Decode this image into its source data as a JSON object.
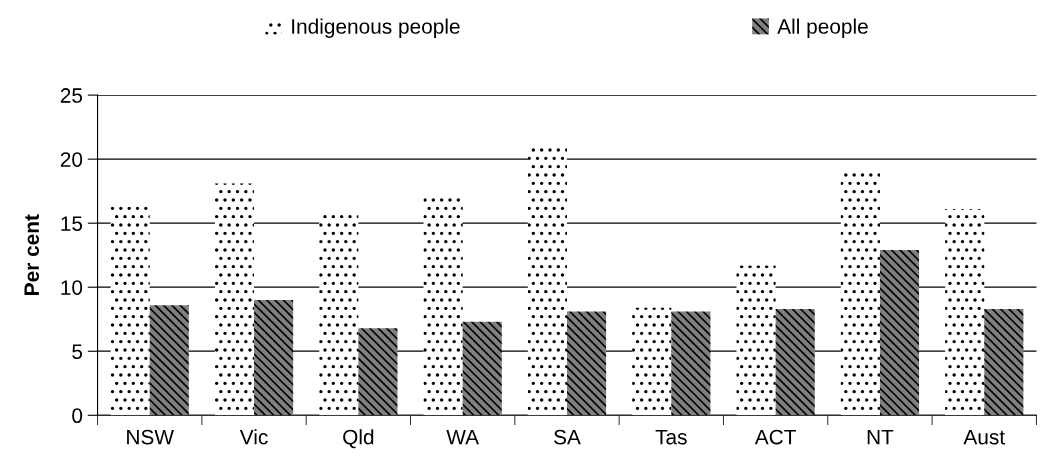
{
  "chart_data": {
    "type": "bar",
    "ylabel": "Per cent",
    "categories": [
      "NSW",
      "Vic",
      "Qld",
      "WA",
      "SA",
      "Tas",
      "ACT",
      "NT",
      "Aust"
    ],
    "series": [
      {
        "name": "Indigenous people",
        "color": "#ffffff",
        "values": [
          16.4,
          18.1,
          15.8,
          17.0,
          21.2,
          8.4,
          11.7,
          19.0,
          16.1
        ]
      },
      {
        "name": "All people",
        "color": "#7f7f7f",
        "values": [
          8.6,
          9.0,
          6.8,
          7.3,
          8.1,
          8.1,
          8.3,
          12.9,
          8.3
        ]
      }
    ],
    "ylim": [
      0,
      25
    ],
    "yticks": [
      0,
      5,
      10,
      15,
      20,
      25
    ],
    "grid": "y",
    "legend": "top"
  }
}
